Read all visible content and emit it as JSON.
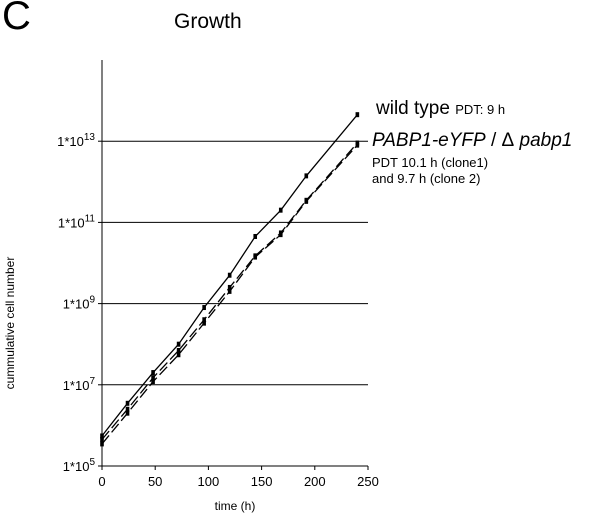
{
  "panel_label": "C",
  "chart_data": {
    "type": "line",
    "title": "Growth",
    "xlabel": "time (h)",
    "ylabel": "cummulative cell number",
    "yscale": "log",
    "xlim": [
      0,
      250
    ],
    "ylim": [
      100000,
      1000000000000000
    ],
    "x_ticks": [
      0,
      50,
      100,
      150,
      200,
      250
    ],
    "x_tick_labels": [
      "0",
      "50",
      "100",
      "150",
      "200",
      "250"
    ],
    "y_ticks": [
      100000,
      10000000,
      1000000000,
      100000000000,
      10000000000000
    ],
    "y_tick_labels": [
      {
        "base": "1*10",
        "exp": "5"
      },
      {
        "base": "1*10",
        "exp": "7"
      },
      {
        "base": "1*10",
        "exp": "9"
      },
      {
        "base": "1*10",
        "exp": "11"
      },
      {
        "base": "1*10",
        "exp": "13"
      }
    ],
    "grid_y": true,
    "series": [
      {
        "name": "wild type",
        "style": "solid",
        "color": "#000000",
        "x": [
          0,
          24,
          48,
          72,
          96,
          120,
          144,
          168,
          192,
          240
        ],
        "y": [
          550000,
          3500000,
          20000000,
          100000000,
          800000000,
          5000000000,
          45000000000,
          200000000000,
          1400000000000,
          45000000000000
        ]
      },
      {
        "name": "PABP1-eYFP / Δ pabp1 (clone1)",
        "style": "dashed",
        "color": "#000000",
        "x": [
          0,
          24,
          48,
          72,
          96,
          120,
          144,
          168,
          192,
          240
        ],
        "y": [
          450000,
          2500000,
          15000000,
          70000000,
          400000000,
          2500000000,
          15000000000,
          55000000000,
          350000000000,
          9000000000000
        ]
      },
      {
        "name": "PABP1-eYFP / Δ pabp1 (clone 2)",
        "style": "dashed",
        "color": "#000000",
        "x": [
          0,
          24,
          48,
          72,
          96,
          120,
          144,
          168,
          192,
          240
        ],
        "y": [
          350000,
          2000000,
          12000000,
          55000000,
          330000000,
          2000000000,
          14000000000,
          50000000000,
          330000000000,
          8000000000000
        ]
      }
    ]
  },
  "annotations": {
    "wild_type": {
      "name": "wild type",
      "detail": "PDT: 9 h"
    },
    "mutant": {
      "name": "PABP1-eYFP",
      "sep": " / ",
      "delta": "Δ",
      "gene": " pabp1"
    },
    "mutant_pdt": {
      "line1": "PDT 10.1 h (clone1)",
      "line2": "and 9.7 h (clone 2)"
    }
  }
}
